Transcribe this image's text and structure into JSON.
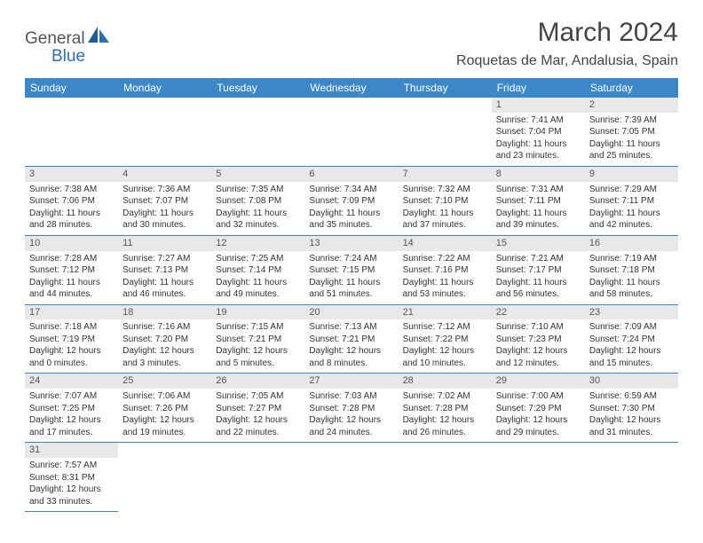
{
  "brand": {
    "general": "General",
    "blue": "Blue"
  },
  "title": "March 2024",
  "location": "Roquetas de Mar, Andalusia, Spain",
  "colors": {
    "header_bg": "#3b87c8",
    "daynum_bg": "#e8e8e8",
    "logo_blue": "#2a6fb0"
  },
  "weekdays": [
    "Sunday",
    "Monday",
    "Tuesday",
    "Wednesday",
    "Thursday",
    "Friday",
    "Saturday"
  ],
  "weeks": [
    [
      null,
      null,
      null,
      null,
      null,
      {
        "n": "1",
        "sr": "Sunrise: 7:41 AM",
        "ss": "Sunset: 7:04 PM",
        "d1": "Daylight: 11 hours",
        "d2": "and 23 minutes."
      },
      {
        "n": "2",
        "sr": "Sunrise: 7:39 AM",
        "ss": "Sunset: 7:05 PM",
        "d1": "Daylight: 11 hours",
        "d2": "and 25 minutes."
      }
    ],
    [
      {
        "n": "3",
        "sr": "Sunrise: 7:38 AM",
        "ss": "Sunset: 7:06 PM",
        "d1": "Daylight: 11 hours",
        "d2": "and 28 minutes."
      },
      {
        "n": "4",
        "sr": "Sunrise: 7:36 AM",
        "ss": "Sunset: 7:07 PM",
        "d1": "Daylight: 11 hours",
        "d2": "and 30 minutes."
      },
      {
        "n": "5",
        "sr": "Sunrise: 7:35 AM",
        "ss": "Sunset: 7:08 PM",
        "d1": "Daylight: 11 hours",
        "d2": "and 32 minutes."
      },
      {
        "n": "6",
        "sr": "Sunrise: 7:34 AM",
        "ss": "Sunset: 7:09 PM",
        "d1": "Daylight: 11 hours",
        "d2": "and 35 minutes."
      },
      {
        "n": "7",
        "sr": "Sunrise: 7:32 AM",
        "ss": "Sunset: 7:10 PM",
        "d1": "Daylight: 11 hours",
        "d2": "and 37 minutes."
      },
      {
        "n": "8",
        "sr": "Sunrise: 7:31 AM",
        "ss": "Sunset: 7:11 PM",
        "d1": "Daylight: 11 hours",
        "d2": "and 39 minutes."
      },
      {
        "n": "9",
        "sr": "Sunrise: 7:29 AM",
        "ss": "Sunset: 7:11 PM",
        "d1": "Daylight: 11 hours",
        "d2": "and 42 minutes."
      }
    ],
    [
      {
        "n": "10",
        "sr": "Sunrise: 7:28 AM",
        "ss": "Sunset: 7:12 PM",
        "d1": "Daylight: 11 hours",
        "d2": "and 44 minutes."
      },
      {
        "n": "11",
        "sr": "Sunrise: 7:27 AM",
        "ss": "Sunset: 7:13 PM",
        "d1": "Daylight: 11 hours",
        "d2": "and 46 minutes."
      },
      {
        "n": "12",
        "sr": "Sunrise: 7:25 AM",
        "ss": "Sunset: 7:14 PM",
        "d1": "Daylight: 11 hours",
        "d2": "and 49 minutes."
      },
      {
        "n": "13",
        "sr": "Sunrise: 7:24 AM",
        "ss": "Sunset: 7:15 PM",
        "d1": "Daylight: 11 hours",
        "d2": "and 51 minutes."
      },
      {
        "n": "14",
        "sr": "Sunrise: 7:22 AM",
        "ss": "Sunset: 7:16 PM",
        "d1": "Daylight: 11 hours",
        "d2": "and 53 minutes."
      },
      {
        "n": "15",
        "sr": "Sunrise: 7:21 AM",
        "ss": "Sunset: 7:17 PM",
        "d1": "Daylight: 11 hours",
        "d2": "and 56 minutes."
      },
      {
        "n": "16",
        "sr": "Sunrise: 7:19 AM",
        "ss": "Sunset: 7:18 PM",
        "d1": "Daylight: 11 hours",
        "d2": "and 58 minutes."
      }
    ],
    [
      {
        "n": "17",
        "sr": "Sunrise: 7:18 AM",
        "ss": "Sunset: 7:19 PM",
        "d1": "Daylight: 12 hours",
        "d2": "and 0 minutes."
      },
      {
        "n": "18",
        "sr": "Sunrise: 7:16 AM",
        "ss": "Sunset: 7:20 PM",
        "d1": "Daylight: 12 hours",
        "d2": "and 3 minutes."
      },
      {
        "n": "19",
        "sr": "Sunrise: 7:15 AM",
        "ss": "Sunset: 7:21 PM",
        "d1": "Daylight: 12 hours",
        "d2": "and 5 minutes."
      },
      {
        "n": "20",
        "sr": "Sunrise: 7:13 AM",
        "ss": "Sunset: 7:21 PM",
        "d1": "Daylight: 12 hours",
        "d2": "and 8 minutes."
      },
      {
        "n": "21",
        "sr": "Sunrise: 7:12 AM",
        "ss": "Sunset: 7:22 PM",
        "d1": "Daylight: 12 hours",
        "d2": "and 10 minutes."
      },
      {
        "n": "22",
        "sr": "Sunrise: 7:10 AM",
        "ss": "Sunset: 7:23 PM",
        "d1": "Daylight: 12 hours",
        "d2": "and 12 minutes."
      },
      {
        "n": "23",
        "sr": "Sunrise: 7:09 AM",
        "ss": "Sunset: 7:24 PM",
        "d1": "Daylight: 12 hours",
        "d2": "and 15 minutes."
      }
    ],
    [
      {
        "n": "24",
        "sr": "Sunrise: 7:07 AM",
        "ss": "Sunset: 7:25 PM",
        "d1": "Daylight: 12 hours",
        "d2": "and 17 minutes."
      },
      {
        "n": "25",
        "sr": "Sunrise: 7:06 AM",
        "ss": "Sunset: 7:26 PM",
        "d1": "Daylight: 12 hours",
        "d2": "and 19 minutes."
      },
      {
        "n": "26",
        "sr": "Sunrise: 7:05 AM",
        "ss": "Sunset: 7:27 PM",
        "d1": "Daylight: 12 hours",
        "d2": "and 22 minutes."
      },
      {
        "n": "27",
        "sr": "Sunrise: 7:03 AM",
        "ss": "Sunset: 7:28 PM",
        "d1": "Daylight: 12 hours",
        "d2": "and 24 minutes."
      },
      {
        "n": "28",
        "sr": "Sunrise: 7:02 AM",
        "ss": "Sunset: 7:28 PM",
        "d1": "Daylight: 12 hours",
        "d2": "and 26 minutes."
      },
      {
        "n": "29",
        "sr": "Sunrise: 7:00 AM",
        "ss": "Sunset: 7:29 PM",
        "d1": "Daylight: 12 hours",
        "d2": "and 29 minutes."
      },
      {
        "n": "30",
        "sr": "Sunrise: 6:59 AM",
        "ss": "Sunset: 7:30 PM",
        "d1": "Daylight: 12 hours",
        "d2": "and 31 minutes."
      }
    ],
    [
      {
        "n": "31",
        "sr": "Sunrise: 7:57 AM",
        "ss": "Sunset: 8:31 PM",
        "d1": "Daylight: 12 hours",
        "d2": "and 33 minutes."
      },
      null,
      null,
      null,
      null,
      null,
      null
    ]
  ]
}
